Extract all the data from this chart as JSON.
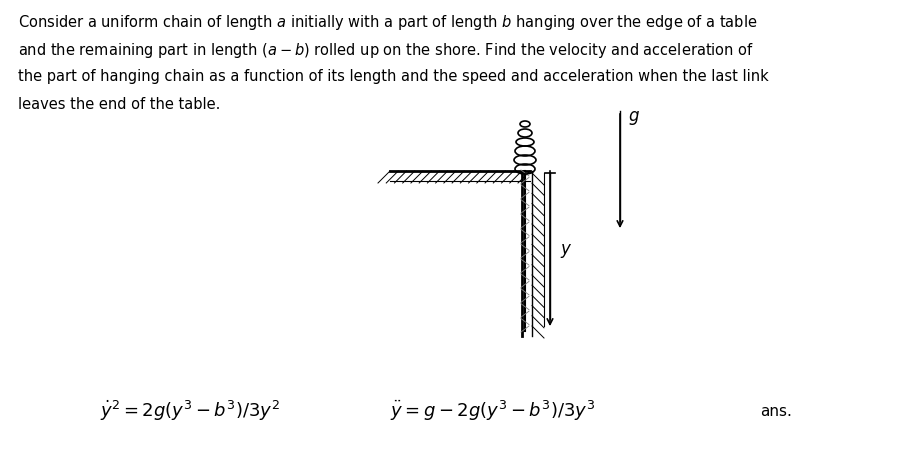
{
  "bg_color": "#ffffff",
  "eq1": "$\\dot{y}^2 = 2g(y^3 - b^3)/3y^2$",
  "eq2": "$\\ddot{y} = g - 2g(y^3 - b^3)/3y^3$",
  "ans_label": "ans.",
  "para_lines": [
    "Consider a uniform chain of length $a$ initially with a part of length $b$ hanging over the edge of a table",
    "and the remaining part in length $(a - b)$ rolled up on the shore. Find the velocity and acceleration of",
    "the part of hanging chain as a function of its length and the speed and acceleration when the last link",
    "leaves the end of the table."
  ]
}
